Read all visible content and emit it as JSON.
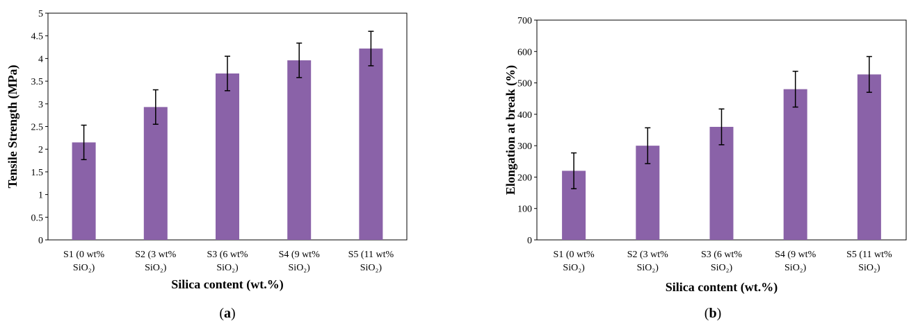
{
  "chart_data": [
    {
      "panel": "a",
      "type": "bar",
      "categories": [
        [
          "S1 (0 wt%",
          "SiO₂)"
        ],
        [
          "S2 (3 wt%",
          "SiO₂)"
        ],
        [
          "S3 (6 wt%",
          "SiO₂)"
        ],
        [
          "S4 (9 wt%",
          "SiO₂)"
        ],
        [
          "S5 (11 wt%",
          "SiO₂)"
        ]
      ],
      "values": [
        2.15,
        2.93,
        3.67,
        3.96,
        4.22
      ],
      "errors": [
        0.38,
        0.38,
        0.38,
        0.38,
        0.38
      ],
      "xlabel": "Silica content (wt.%)",
      "ylabel": "Tensile Strength (MPa)",
      "ylim": [
        0,
        5
      ],
      "yticks": [
        0,
        0.5,
        1,
        1.5,
        2,
        2.5,
        3,
        3.5,
        4,
        4.5,
        5
      ],
      "color": "#8a62a8",
      "grid": false
    },
    {
      "panel": "b",
      "type": "bar",
      "categories": [
        [
          "S1 (0 wt%",
          "SiO₂)"
        ],
        [
          "S2 (3 wt%",
          "SiO₂)"
        ],
        [
          "S3 (6 wt%",
          "SiO₂)"
        ],
        [
          "S4 (9 wt%",
          "SiO₂)"
        ],
        [
          "S5 (11 wt%",
          "SiO₂)"
        ]
      ],
      "values": [
        220,
        300,
        360,
        480,
        527
      ],
      "errors": [
        57,
        57,
        57,
        57,
        57
      ],
      "xlabel": "Silica content (wt.%)",
      "ylabel": "Elongation at break (%)",
      "ylim": [
        0,
        700
      ],
      "yticks": [
        0,
        100,
        200,
        300,
        400,
        500,
        600,
        700
      ],
      "color": "#8a62a8",
      "grid": false
    }
  ],
  "labels": {
    "a": "a",
    "b": "b"
  }
}
